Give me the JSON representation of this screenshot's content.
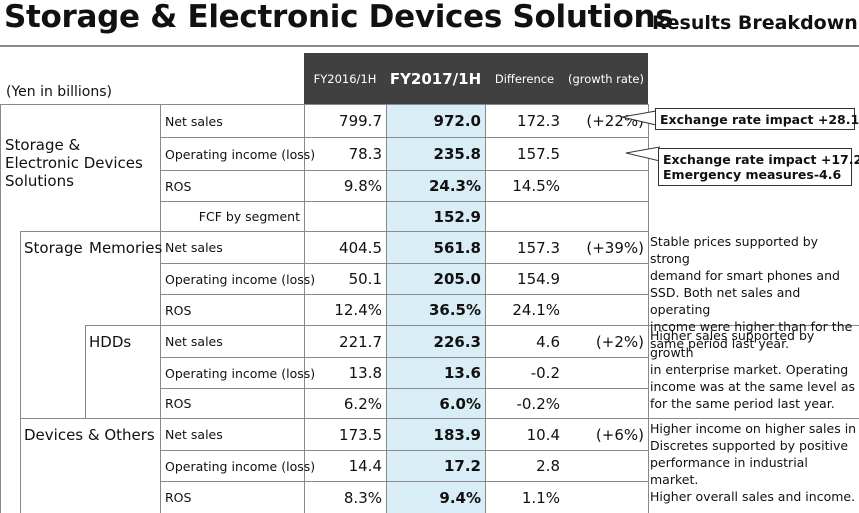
{
  "title": "Storage & Electronic Devices Solutions",
  "subtitle": "Results Breakdown",
  "unit": "(Yen in billions)",
  "headers": {
    "fy2016": "FY2016/1H",
    "fy2017": "FY2017/1H",
    "difference": "Difference",
    "growth": "(growth rate)"
  },
  "segments": {
    "total": "Storage & Electronic Devices Solutions",
    "storage": "Storage",
    "memories": "Memories",
    "hdds": "HDDs",
    "devices": "Devices & Others"
  },
  "row_labels": {
    "net_sales": "Net sales",
    "op_income": "Operating income (loss)",
    "ros": "ROS",
    "fcf": "FCF by segment"
  },
  "rows": {
    "total": {
      "net_sales": {
        "fy2016": "799.7",
        "fy2017": "972.0",
        "diff": "172.3",
        "growth": "(+22%)"
      },
      "op_income": {
        "fy2016": "78.3",
        "fy2017": "235.8",
        "diff": "157.5",
        "growth": ""
      },
      "ros": {
        "fy2016": "9.8%",
        "fy2017": "24.3%",
        "diff": "14.5%",
        "growth": ""
      },
      "fcf": {
        "fy2017": "152.9"
      }
    },
    "memories": {
      "net_sales": {
        "fy2016": "404.5",
        "fy2017": "561.8",
        "diff": "157.3",
        "growth": "(+39%)"
      },
      "op_income": {
        "fy2016": "50.1",
        "fy2017": "205.0",
        "diff": "154.9",
        "growth": ""
      },
      "ros": {
        "fy2016": "12.4%",
        "fy2017": "36.5%",
        "diff": "24.1%",
        "growth": ""
      }
    },
    "hdds": {
      "net_sales": {
        "fy2016": "221.7",
        "fy2017": "226.3",
        "diff": "4.6",
        "growth": "(+2%)"
      },
      "op_income": {
        "fy2016": "13.8",
        "fy2017": "13.6",
        "diff": "-0.2",
        "growth": ""
      },
      "ros": {
        "fy2016": "6.2%",
        "fy2017": "6.0%",
        "diff": "-0.2%",
        "growth": ""
      }
    },
    "devices": {
      "net_sales": {
        "fy2016": "173.5",
        "fy2017": "183.9",
        "diff": "10.4",
        "growth": "(+6%)"
      },
      "op_income": {
        "fy2016": "14.4",
        "fy2017": "17.2",
        "diff": "2.8",
        "growth": ""
      },
      "ros": {
        "fy2016": "8.3%",
        "fy2017": "9.4%",
        "diff": "1.1%",
        "growth": ""
      }
    }
  },
  "callouts": {
    "net_sales": "Exchange rate impact +28.1",
    "op_income_line1": "Exchange rate impact +17.2",
    "op_income_line2_label": "Emergency measures",
    "op_income_line2_value": "-4.6"
  },
  "notes": {
    "memories": [
      "Stable prices supported by strong",
      "demand for smart phones and",
      "SSD. Both net sales and operating",
      "income were higher than for the",
      "same period last year."
    ],
    "hdds": [
      "Higher sales supported by growth",
      "in enterprise market. Operating",
      "income was at the same level as",
      "for the same period last year."
    ],
    "devices": [
      "Higher income on higher sales in",
      "Discretes supported by positive",
      "performance in industrial market.",
      "Higher overall sales and income."
    ]
  }
}
